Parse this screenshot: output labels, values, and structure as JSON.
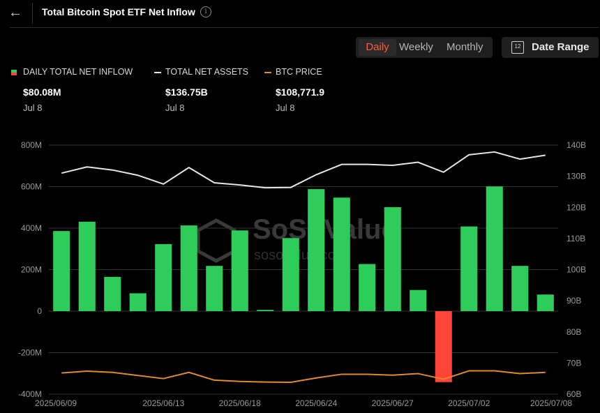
{
  "header": {
    "title": "Total Bitcoin Spot ETF Net Inflow",
    "back_icon": "arrow-left-icon",
    "info_icon": "info-icon"
  },
  "toolbar": {
    "tabs": [
      {
        "label": "Daily",
        "active": true
      },
      {
        "label": "Weekly",
        "active": false
      },
      {
        "label": "Monthly",
        "active": false
      }
    ],
    "date_range_label": "Date Range",
    "calendar_icon_text": "12"
  },
  "legend": [
    {
      "label": "DAILY TOTAL NET INFLOW",
      "value": "$80.08M",
      "date": "Jul 8",
      "color": "#2ecc5a"
    },
    {
      "label": "TOTAL NET ASSETS",
      "value": "$136.75B",
      "date": "Jul 8",
      "color": "#e6e6e6"
    },
    {
      "label": "BTC PRICE",
      "value": "$108,771.9",
      "date": "Jul 8",
      "color": "#e08a2e"
    }
  ],
  "colors": {
    "positive": "#2ecc5a",
    "negative": "#ff4438",
    "assets_line": "#e6e6e6",
    "price_line": "#e08a2e",
    "grid": "#333333",
    "axis_text": "#9a9a9a"
  },
  "chart_data": {
    "type": "bar",
    "x_tick_labels": [
      "2025/06/09",
      "2025/06/13",
      "2025/06/18",
      "2025/06/24",
      "2025/06/27",
      "2025/07/02",
      "2025/07/08"
    ],
    "x_tick_indices": [
      0,
      4,
      7,
      10,
      13,
      16,
      19
    ],
    "left_axis": {
      "ticks": [
        "800M",
        "600M",
        "400M",
        "200M",
        "0",
        "-200M",
        "-400M"
      ],
      "range": [
        -400,
        800
      ],
      "unit": "M"
    },
    "right_axis": {
      "ticks": [
        "140B",
        "130B",
        "120B",
        "110B",
        "100B",
        "90B",
        "80B",
        "70B",
        "60B"
      ],
      "range": [
        60,
        140
      ],
      "unit": "B"
    },
    "series": [
      {
        "name": "DAILY TOTAL NET INFLOW",
        "type": "bar",
        "axis": "left",
        "values": [
          386,
          431,
          165,
          86,
          323,
          413,
          218,
          389,
          6,
          352,
          588,
          547,
          227,
          501,
          102,
          -342,
          408,
          601,
          218,
          80
        ]
      },
      {
        "name": "TOTAL NET ASSETS",
        "type": "line",
        "axis": "right",
        "values": [
          131.0,
          133.0,
          132.0,
          130.3,
          127.5,
          132.8,
          127.9,
          127.2,
          126.3,
          126.4,
          130.5,
          133.8,
          133.8,
          133.5,
          134.5,
          131.3,
          136.9,
          137.8,
          135.5,
          136.75
        ]
      },
      {
        "name": "BTC PRICE",
        "type": "line",
        "axis": "right",
        "values": [
          66.8,
          67.4,
          67.0,
          66.0,
          65.0,
          67.0,
          64.5,
          64.1,
          63.9,
          63.8,
          65.2,
          66.4,
          66.4,
          66.1,
          66.6,
          64.8,
          67.5,
          67.5,
          66.6,
          67.0
        ]
      }
    ],
    "watermark": {
      "name": "SoSoValue",
      "url": "sosovalue.com"
    }
  }
}
